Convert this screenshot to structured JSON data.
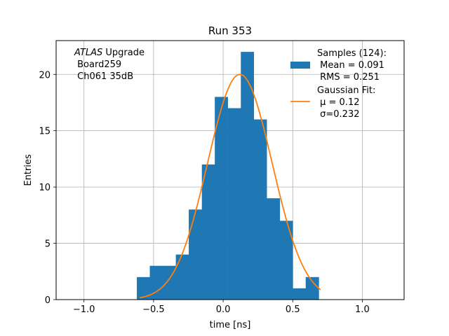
{
  "chart_data": {
    "type": "bar",
    "title": "Run 353",
    "xlabel": "time [ns]",
    "ylabel": "Entries",
    "xlim": [
      -1.2,
      1.3
    ],
    "ylim": [
      0,
      23
    ],
    "xticks": [
      -1.0,
      -0.5,
      0.0,
      0.5,
      1.0
    ],
    "xtick_labels": [
      "−1.0",
      "−0.5",
      "0.0",
      "0.5",
      "1.0"
    ],
    "yticks": [
      0,
      5,
      10,
      15,
      20
    ],
    "ytick_labels": [
      "0",
      "5",
      "10",
      "15",
      "20"
    ],
    "grid": true,
    "annotation": {
      "italic": "ATLAS",
      "rest": " Upgrade",
      "line2": " Board259",
      "line3": " Ch061 35dB"
    },
    "histogram": {
      "bin_edges": [
        -0.62,
        -0.527,
        -0.433,
        -0.34,
        -0.247,
        -0.153,
        -0.06,
        0.033,
        0.127,
        0.22,
        0.313,
        0.407,
        0.5,
        0.593,
        0.687
      ],
      "counts": [
        2,
        3,
        3,
        4,
        8,
        12,
        18,
        17,
        22,
        16,
        9,
        7,
        1,
        2
      ],
      "color": "#1f77b4"
    },
    "gaussian_fit": {
      "mu": 0.12,
      "sigma": 0.232,
      "amplitude": 20,
      "x_range": [
        -0.6,
        0.7
      ],
      "color": "#ff7f0e"
    },
    "legend": {
      "placement": "top-right",
      "entries": [
        {
          "lines": [
            "Samples (124):",
            " Mean = 0.091",
            " RMS = 0.251"
          ],
          "marker": "patch",
          "color": "#1f77b4"
        },
        {
          "lines": [
            "Gaussian Fit:",
            " μ = 0.12",
            " σ=0.232"
          ],
          "marker": "line",
          "color": "#ff7f0e"
        }
      ]
    }
  }
}
